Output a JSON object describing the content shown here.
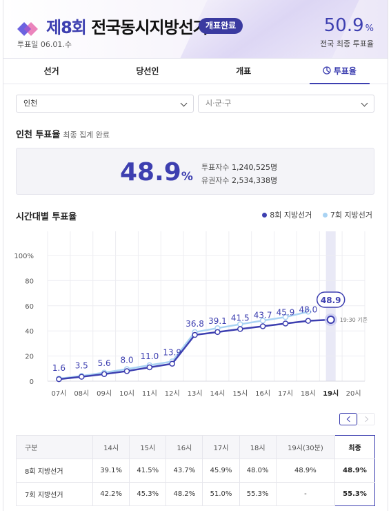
{
  "header": {
    "title_num": "제8회",
    "title_rest": "전국동시지방선거",
    "badge": "개표완료",
    "date": "투표일 06.01.수",
    "national_rate": "50.9",
    "national_rate_unit": "%",
    "national_label": "전국 최종 투표율"
  },
  "tabs": [
    {
      "label": "선거"
    },
    {
      "label": "당선인"
    },
    {
      "label": "개표"
    },
    {
      "label": "투표율"
    }
  ],
  "filters": {
    "city": "인천",
    "district_placeholder": "시·군·구"
  },
  "summary": {
    "title": "인천 투표율",
    "status": "최종 집계 완료",
    "rate": "48.9",
    "rate_unit": "%",
    "voters_label": "투표자수",
    "voters": "1,240,525명",
    "electors_label": "유권자수",
    "electors": "2,534,338명"
  },
  "chart_section": {
    "title": "시간대별 투표율",
    "legend_8": "8회 지방선거",
    "legend_7": "7회 지방선거",
    "highlight_value": "48.9",
    "highlight_note": "19:30 기준",
    "color_8": "#3d3fb0",
    "color_7": "#a9d3f3"
  },
  "chart_data": {
    "type": "line",
    "x": [
      "07시",
      "08시",
      "09시",
      "10시",
      "11시",
      "12시",
      "13시",
      "14시",
      "15시",
      "16시",
      "17시",
      "18시",
      "19시",
      "20시"
    ],
    "yticks": [
      "0",
      "20",
      "40",
      "60",
      "80",
      "100%"
    ],
    "ylim": [
      0,
      100
    ],
    "grid": true,
    "legend_position": "top-right",
    "series": [
      {
        "name": "8회 지방선거",
        "values": [
          1.6,
          3.5,
          5.6,
          8.0,
          11.0,
          13.9,
          36.8,
          39.1,
          41.5,
          43.7,
          45.9,
          48.0,
          48.9,
          null
        ]
      },
      {
        "name": "7회 지방선거",
        "values": [
          2.0,
          4.2,
          6.8,
          9.6,
          12.7,
          15.7,
          39.0,
          42.2,
          45.3,
          48.2,
          51.0,
          55.3,
          null,
          null
        ]
      }
    ],
    "labels": [
      "1.6",
      "3.5",
      "5.6",
      "8.0",
      "11.0",
      "13.9",
      "36.8",
      "39.1",
      "41.5",
      "43.7",
      "45.9",
      "48.0"
    ],
    "highlight_index": 12
  },
  "table": {
    "headers": [
      "구분",
      "14시",
      "15시",
      "16시",
      "17시",
      "18시",
      "19시(30분)",
      "최종"
    ],
    "rows": [
      [
        "8회 지방선거",
        "39.1%",
        "41.5%",
        "43.7%",
        "45.9%",
        "48.0%",
        "48.9%",
        "48.9%"
      ],
      [
        "7회 지방선거",
        "42.2%",
        "45.3%",
        "48.2%",
        "51.0%",
        "55.3%",
        "-",
        "55.3%"
      ]
    ]
  }
}
